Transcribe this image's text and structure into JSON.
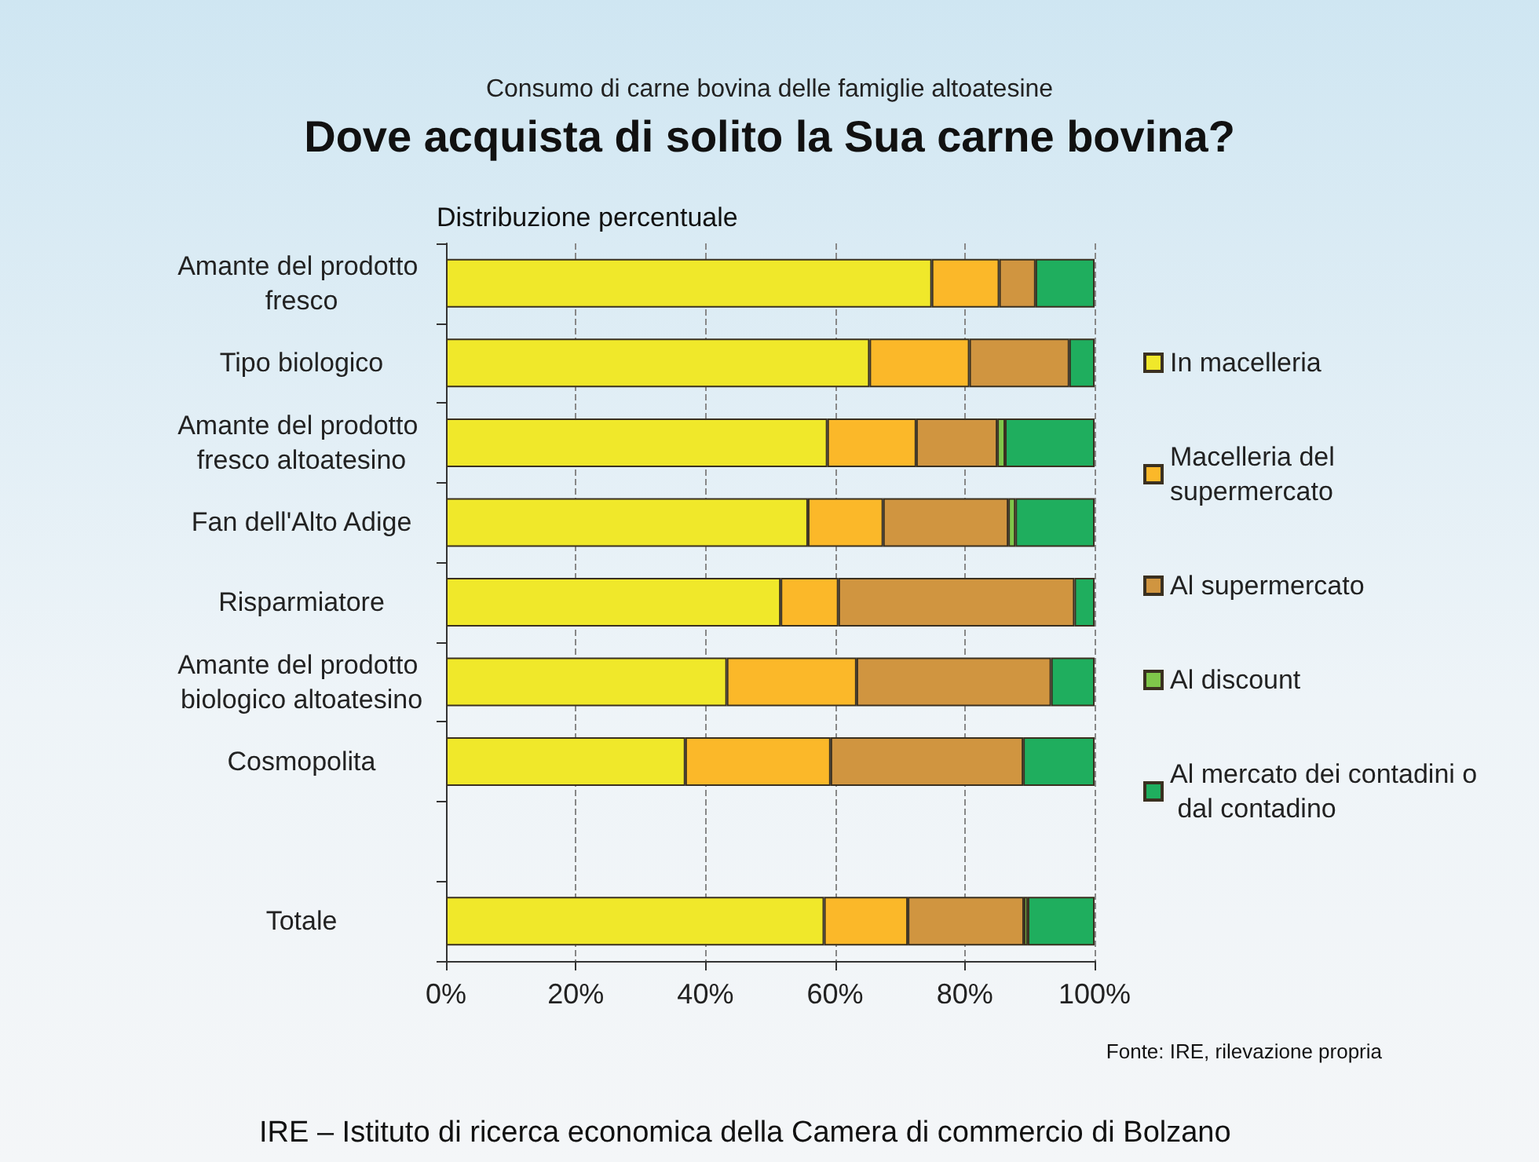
{
  "chart_data": {
    "type": "bar",
    "orientation": "horizontal",
    "stacked": true,
    "subtitle": "Consumo di carne bovina delle famiglie altoatesine",
    "title": "Dove acquista di solito la Sua carne bovina?",
    "categories": [
      "Amante del prodotto fresco",
      "Tipo biologico",
      "Amante del prodotto fresco altoatesino",
      "Fan dell'Alto Adige",
      "Risparmiatore",
      "Amante del prodotto biologico altoatesino",
      "Cosmopolita",
      null,
      "Totale"
    ],
    "series": [
      {
        "name": "In macelleria",
        "color": "#f0e82a",
        "values": [
          74.9,
          65.3,
          58.8,
          55.8,
          51.6,
          43.3,
          36.9,
          null,
          58.3
        ]
      },
      {
        "name": "Macelleria del supermercato",
        "color": "#fbb829",
        "values": [
          10.4,
          15.4,
          13.7,
          11.6,
          8.9,
          20.0,
          22.4,
          null,
          12.9
        ]
      },
      {
        "name": "Al supermercato",
        "color": "#d09540",
        "values": [
          5.6,
          15.4,
          12.5,
          19.3,
          36.4,
          30.0,
          29.7,
          null,
          17.9
        ]
      },
      {
        "name": "Al discount",
        "color": "#7fc64a",
        "values": [
          0,
          0,
          1.2,
          1.1,
          0,
          0,
          0,
          null,
          0.6
        ]
      },
      {
        "name": "Al mercato dei contadini o dal contadino",
        "color": "#1fae5e",
        "values": [
          9.1,
          3.9,
          13.8,
          12.2,
          3.1,
          6.7,
          11.0,
          null,
          10.3
        ]
      }
    ],
    "xlim": [
      0,
      100
    ],
    "xticks": [
      {
        "value": 0,
        "label": "0%"
      },
      {
        "value": 20,
        "label": "20%"
      },
      {
        "value": 40,
        "label": "40%"
      },
      {
        "value": 60,
        "label": "60%"
      },
      {
        "value": 80,
        "label": "80%"
      },
      {
        "value": 100,
        "label": "100%"
      }
    ],
    "grid": "x",
    "legend": "right",
    "annotations": [
      "Distribuzione percentuale",
      "Fonte: IRE, rilevazione propria",
      "IRE – Istituto di ricerca economica della Camera di commercio di Bolzano"
    ]
  }
}
